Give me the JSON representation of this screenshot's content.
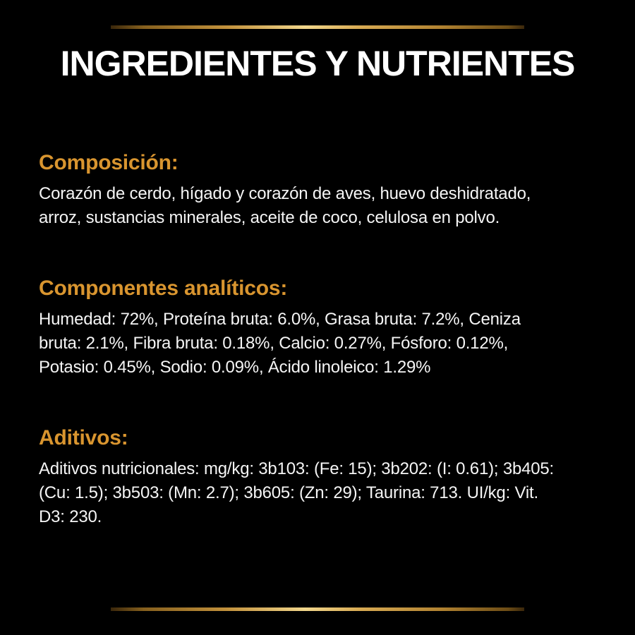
{
  "page": {
    "title": "INGREDIENTES Y NUTRIENTES",
    "colors": {
      "background": "#000000",
      "heading_accent": "#d9952f",
      "body_text": "#f5f5f5",
      "divider_gold_dark": "#3a270b",
      "divider_gold_mid": "#c2913c",
      "divider_gold_light": "#f1d68c"
    }
  },
  "sections": [
    {
      "heading": "Composición:",
      "lines": [
        "Corazón de cerdo, hígado y corazón de aves, huevo deshidratado,",
        "arroz, sustancias minerales, aceite de coco, celulosa en polvo."
      ]
    },
    {
      "heading": "Componentes analíticos:",
      "lines": [
        "Humedad: 72%, Proteína bruta: 6.0%, Grasa bruta: 7.2%, Ceniza",
        "bruta: 2.1%, Fibra bruta: 0.18%, Calcio: 0.27%, Fósforo: 0.12%,",
        "Potasio: 0.45%, Sodio: 0.09%, Ácido linoleico: 1.29%"
      ]
    },
    {
      "heading": "Aditivos:",
      "lines": [
        "Aditivos nutricionales: mg/kg: 3b103: (Fe: 15); 3b202: (I: 0.61); 3b405:",
        "(Cu: 1.5); 3b503: (Mn: 2.7); 3b605: (Zn: 29); Taurina: 713. UI/kg: Vit.",
        "D3: 230."
      ]
    }
  ]
}
